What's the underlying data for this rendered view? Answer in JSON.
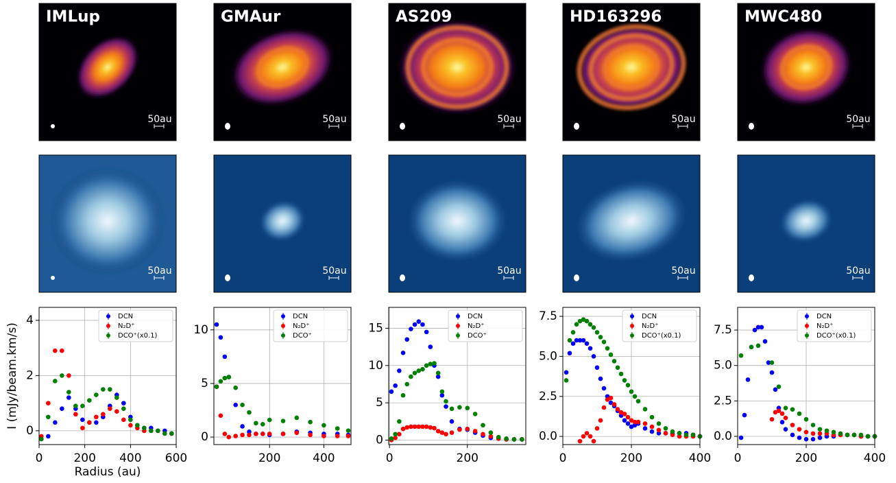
{
  "chart_data": [
    {
      "type": "scatter",
      "title": "IMLup",
      "scale_label": "50au",
      "ylabel": "I (mJy/beam.km/s)",
      "xlabel": "Radius (au)",
      "xlim": [
        0,
        600
      ],
      "xticks": [
        0,
        200,
        400,
        600
      ],
      "ylim": [
        -0.5,
        4.47
      ],
      "yticks": [
        0,
        2,
        4
      ],
      "grid": true,
      "legend": "upper right",
      "x": [
        10,
        40,
        70,
        100,
        130,
        160,
        190,
        220,
        250,
        280,
        310,
        340,
        370,
        400,
        430,
        460,
        490,
        520,
        550,
        580
      ],
      "series": [
        {
          "name": "DCN",
          "color": "#0000ff",
          "values": [
            -0.3,
            -0.2,
            0.3,
            0.8,
            1.2,
            0.8,
            0.4,
            0.3,
            0.3,
            0.5,
            0.9,
            1.3,
            1.0,
            0.5,
            0.2,
            0.1,
            0.1,
            0.0,
            0.0,
            -0.1
          ]
        },
        {
          "name": "N₂D⁺",
          "color": "#ff0000",
          "values": [
            -0.2,
            1.0,
            2.9,
            2.9,
            2.0,
            0.6,
            0.1,
            0.3,
            0.5,
            0.6,
            0.8,
            0.7,
            0.4,
            0.2,
            0.1,
            0.0,
            0.0,
            0.0,
            -0.1,
            -0.1
          ]
        },
        {
          "name": "DCO⁺(x0.1)",
          "color": "#008000",
          "values": [
            -0.3,
            0.5,
            1.8,
            2.0,
            1.4,
            0.9,
            0.9,
            1.1,
            1.3,
            1.5,
            1.5,
            1.2,
            0.8,
            0.4,
            0.2,
            0.1,
            0.0,
            0.0,
            -0.1,
            -0.1
          ]
        }
      ]
    },
    {
      "type": "scatter",
      "title": "GMAur",
      "scale_label": "50au",
      "xlim": [
        -5,
        500
      ],
      "xticks": [
        200,
        400
      ],
      "ylim": [
        -0.7,
        12.1
      ],
      "yticks": [
        0,
        5,
        10
      ],
      "grid": true,
      "legend": "upper right",
      "x": [
        5,
        20,
        35,
        50,
        75,
        100,
        125,
        150,
        175,
        200,
        250,
        300,
        350,
        400,
        450,
        490
      ],
      "series": [
        {
          "name": "DCN",
          "color": "#0000ff",
          "values": [
            10.5,
            9.3,
            7.5,
            5.6,
            3.0,
            1.0,
            0.5,
            0.3,
            0.3,
            0.2,
            0.3,
            0.5,
            0.4,
            0.3,
            0.3,
            0.2
          ]
        },
        {
          "name": "N₂D⁺",
          "color": "#ff0000",
          "values": [
            4.7,
            2.0,
            0.3,
            0.0,
            0.1,
            0.2,
            0.2,
            0.3,
            0.3,
            0.3,
            0.3,
            0.4,
            0.2,
            0.1,
            0.1,
            0.1
          ]
        },
        {
          "name": "DCO⁺",
          "color": "#008000",
          "values": [
            4.7,
            5.2,
            5.5,
            5.6,
            4.6,
            3.0,
            2.3,
            1.3,
            1.2,
            1.6,
            1.5,
            1.8,
            1.4,
            1.1,
            0.8,
            0.6
          ]
        }
      ]
    },
    {
      "type": "scatter",
      "title": "AS209",
      "scale_label": "50au",
      "xlim": [
        -2,
        350
      ],
      "xticks": [
        0,
        200
      ],
      "ylim": [
        -0.6,
        17.8
      ],
      "yticks": [
        0,
        5,
        10,
        15
      ],
      "grid": true,
      "legend": "upper right",
      "x": [
        5,
        15,
        25,
        35,
        45,
        55,
        65,
        75,
        85,
        95,
        105,
        115,
        125,
        135,
        145,
        160,
        180,
        200,
        220,
        240,
        260,
        280,
        300,
        320,
        340
      ],
      "series": [
        {
          "name": "DCN",
          "color": "#0000ff",
          "values": [
            6.5,
            7.3,
            9.3,
            11.7,
            13.5,
            14.9,
            15.5,
            15.9,
            15.5,
            14.5,
            12.5,
            10.0,
            8.5,
            6.0,
            4.5,
            2.5,
            1.5,
            1.4,
            1.0,
            0.6,
            0.3,
            0.2,
            0.1,
            0.1,
            0.1
          ]
        },
        {
          "name": "N₂D⁺",
          "color": "#ff0000",
          "values": [
            0.0,
            0.3,
            0.8,
            1.5,
            1.7,
            1.8,
            1.8,
            1.8,
            1.8,
            1.8,
            1.7,
            1.6,
            1.2,
            1.0,
            0.8,
            1.0,
            1.4,
            1.5,
            1.2,
            0.8,
            0.5,
            0.2,
            0.1,
            0.1,
            0.1
          ]
        },
        {
          "name": "DCO⁺",
          "color": "#008000",
          "values": [
            0.2,
            0.8,
            2.5,
            6.0,
            7.5,
            8.5,
            9.0,
            9.3,
            9.5,
            10.0,
            10.2,
            10.3,
            9.0,
            6.5,
            5.2,
            4.2,
            4.4,
            4.3,
            3.5,
            2.0,
            1.0,
            0.4,
            0.2,
            0.1,
            0.1
          ]
        }
      ]
    },
    {
      "type": "scatter",
      "title": "HD163296",
      "scale_label": "50au",
      "xlim": [
        0,
        400
      ],
      "xticks": [
        0,
        200,
        400
      ],
      "ylim": [
        -0.51,
        8.06
      ],
      "yticks": [
        {
          "value": 0,
          "label": "0.0"
        },
        2.5,
        {
          "value": 5,
          "label": "5.0"
        },
        7.5
      ],
      "grid": true,
      "legend": "upper right",
      "x": [
        10,
        20,
        30,
        40,
        50,
        60,
        70,
        80,
        90,
        100,
        110,
        120,
        130,
        140,
        150,
        160,
        170,
        180,
        190,
        200,
        210,
        220,
        240,
        260,
        280,
        300,
        320,
        340,
        360,
        380,
        400
      ],
      "series": [
        {
          "name": "DCN",
          "color": "#0000ff",
          "values": [
            4.0,
            5.2,
            5.8,
            6.0,
            6.0,
            6.0,
            5.8,
            5.5,
            5.0,
            4.3,
            3.6,
            3.0,
            2.5,
            2.1,
            1.9,
            1.6,
            1.3,
            1.0,
            0.8,
            0.6,
            0.7,
            0.8,
            0.5,
            0.3,
            0.2,
            0.2,
            0.2,
            0.2,
            0.2,
            0.1,
            0.0
          ]
        },
        {
          "name": "N₂D⁺",
          "color": "#ff0000",
          "values": [
            null,
            null,
            null,
            null,
            -0.3,
            0.0,
            0.2,
            0.0,
            -0.3,
            0.5,
            1.0,
            1.8,
            2.3,
            2.4,
            2.0,
            1.7,
            1.5,
            1.4,
            1.2,
            1.0,
            0.9,
            0.9,
            0.8,
            0.6,
            0.4,
            0.2,
            0.1,
            0.0,
            0.0,
            0.0,
            0.0
          ]
        },
        {
          "name": "DCO⁺(x0.1)",
          "color": "#008000",
          "values": [
            3.5,
            6.0,
            6.5,
            7.0,
            7.2,
            7.3,
            7.2,
            7.0,
            6.8,
            6.5,
            6.2,
            5.9,
            5.5,
            5.1,
            4.7,
            4.3,
            3.9,
            3.5,
            3.2,
            2.8,
            2.5,
            2.2,
            1.7,
            1.2,
            0.8,
            0.5,
            0.3,
            0.2,
            0.1,
            0.1,
            0.0
          ]
        }
      ]
    },
    {
      "type": "scatter",
      "title": "MWC480",
      "scale_label": "50au",
      "xlim": [
        0,
        400
      ],
      "xticks": [
        0,
        200,
        400
      ],
      "ylim": [
        -0.58,
        9.1
      ],
      "yticks": [
        {
          "value": 0,
          "label": "0.0"
        },
        2.5,
        {
          "value": 5,
          "label": "5.0"
        },
        7.5
      ],
      "grid": true,
      "legend": "upper right",
      "x": [
        10,
        20,
        30,
        40,
        50,
        60,
        70,
        80,
        90,
        100,
        110,
        120,
        130,
        140,
        160,
        180,
        200,
        220,
        240,
        260,
        280,
        300,
        320,
        340,
        360,
        380,
        400
      ],
      "series": [
        {
          "name": "DCN",
          "color": "#0000ff",
          "values": [
            -0.1,
            1.5,
            4.0,
            6.3,
            7.5,
            7.7,
            7.7,
            6.7,
            5.2,
            4.5,
            3.3,
            2.0,
            1.0,
            0.5,
            0.1,
            -0.1,
            -0.2,
            -0.2,
            -0.1,
            0.0,
            0.0,
            0.1,
            0.1,
            0.1,
            0.0,
            0.0,
            0.0
          ]
        },
        {
          "name": "N₂D⁺",
          "color": "#ff0000",
          "values": [
            null,
            null,
            null,
            null,
            null,
            null,
            null,
            null,
            null,
            1.2,
            1.7,
            1.8,
            1.6,
            1.3,
            0.8,
            0.5,
            0.3,
            0.2,
            0.2,
            0.2,
            0.1,
            0.1,
            0.1,
            0.1,
            0.0,
            0.0,
            0.0
          ]
        },
        {
          "name": "DCO⁺(x0.1)",
          "color": "#008000",
          "values": [
            5.7,
            null,
            null,
            6.3,
            null,
            6.4,
            null,
            null,
            null,
            5.2,
            null,
            3.5,
            null,
            2.0,
            1.9,
            1.6,
            1.2,
            0.8,
            0.5,
            0.4,
            0.3,
            0.2,
            0.1,
            0.1,
            0.1,
            0.0,
            0.0
          ]
        }
      ]
    }
  ]
}
